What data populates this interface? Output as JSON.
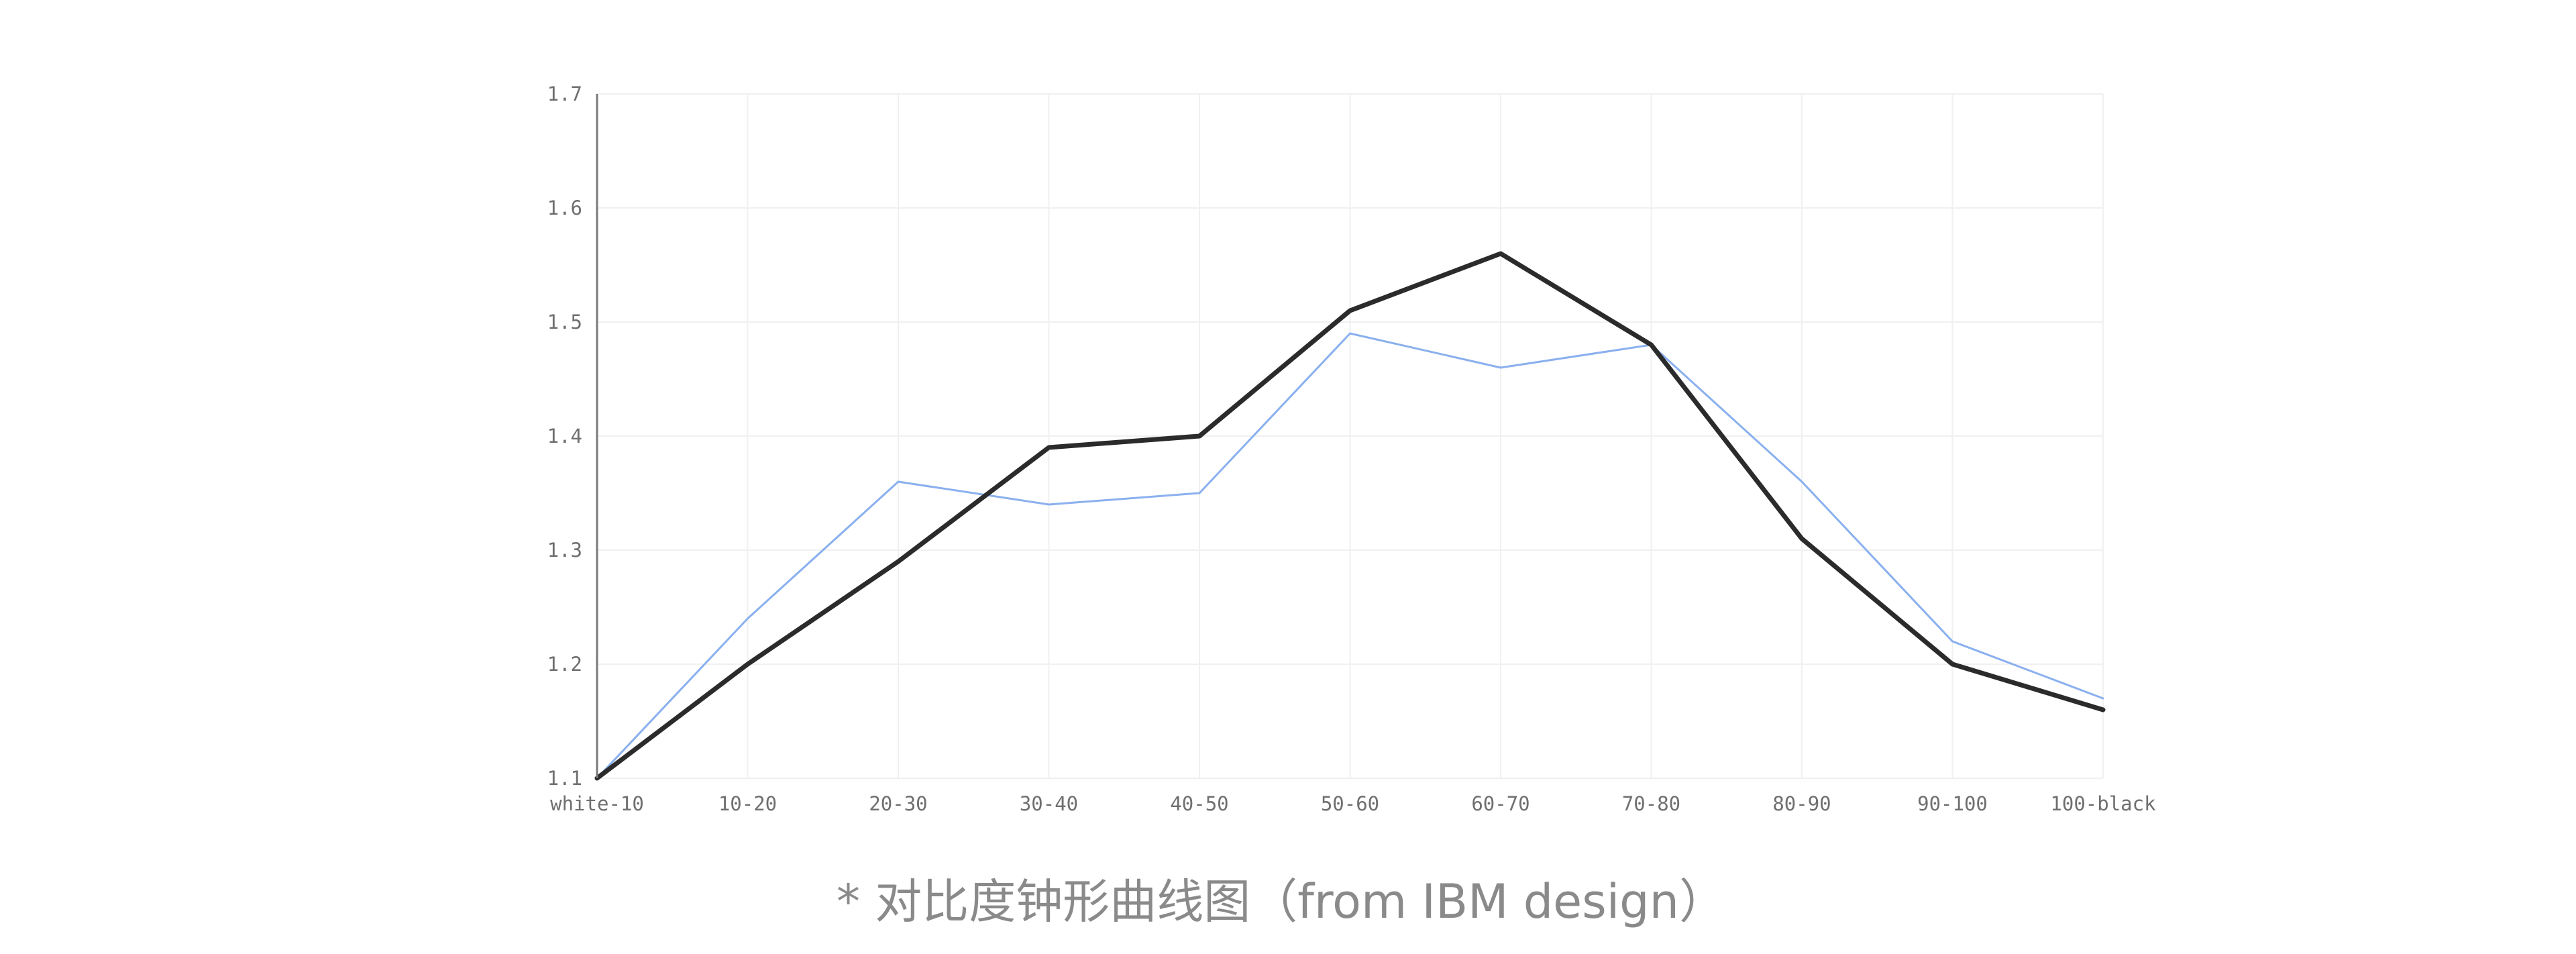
{
  "caption": "* 对比度钟形曲线图（from IBM design）",
  "chart_data": {
    "type": "line",
    "categories": [
      "white-10",
      "10-20",
      "20-30",
      "30-40",
      "40-50",
      "50-60",
      "60-70",
      "70-80",
      "80-90",
      "90-100",
      "100-black"
    ],
    "y_ticks": [
      "1.1",
      "1.2",
      "1.3",
      "1.4",
      "1.5",
      "1.6",
      "1.7"
    ],
    "ylim": [
      1.1,
      1.7
    ],
    "grid": true,
    "series": [
      {
        "values": [
          1.1,
          1.24,
          1.36,
          1.34,
          1.35,
          1.49,
          1.46,
          1.48,
          1.36,
          1.22,
          1.17
        ],
        "color": "#8ab0ee"
      },
      {
        "values": [
          1.1,
          1.2,
          1.29,
          1.39,
          1.4,
          1.51,
          1.56,
          1.48,
          1.31,
          1.2,
          1.16
        ],
        "color": "#2b2b2b"
      }
    ]
  }
}
